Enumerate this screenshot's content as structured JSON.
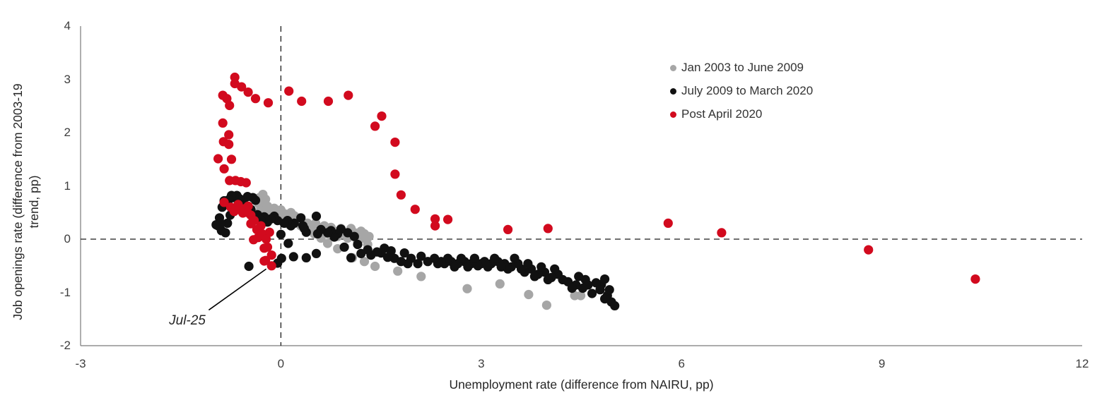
{
  "chart_data": {
    "type": "scatter",
    "title": "",
    "xlabel": "Unemployment rate (difference from NAIRU, pp)",
    "ylabel": "Job openings rate (difference from 2003-19 trend, pp)",
    "ylabel_lines": [
      "Job openings rate (difference from 2003-19",
      "trend, pp)"
    ],
    "xlim": [
      -3,
      12
    ],
    "ylim": [
      -2,
      4
    ],
    "x_ticks": [
      -3,
      0,
      3,
      6,
      9,
      12
    ],
    "y_ticks": [
      4,
      3,
      2,
      1,
      0,
      -1,
      -2
    ],
    "grid": false,
    "zero_reference_lines": "dashed",
    "legend_position": "upper-right-inside",
    "axis_color": "#7a7a7a",
    "dash_color": "#1a1a1a",
    "marker_radius_px": 6.6,
    "annotation": {
      "text": "Jul-25",
      "points_to": [
        -0.14,
        -0.5
      ],
      "line_from": [
        -1.08,
        -1.33
      ],
      "line_to": [
        -0.22,
        -0.56
      ]
    },
    "series": [
      {
        "name": "Jan 2003 to June 2009",
        "color": "#a6a6a6",
        "points": [
          [
            1.15,
            -0.05
          ],
          [
            1.22,
            0.02
          ],
          [
            1.3,
            -0.1
          ],
          [
            1.25,
            0.1
          ],
          [
            1.1,
            0.05
          ],
          [
            1.32,
            0.05
          ],
          [
            1.2,
            0.15
          ],
          [
            1.1,
            0.12
          ],
          [
            1.0,
            0.02
          ],
          [
            1.05,
            0.2
          ],
          [
            0.95,
            0.1
          ],
          [
            0.9,
            0.2
          ],
          [
            0.92,
            0.12
          ],
          [
            0.85,
            0.05
          ],
          [
            0.8,
            0.15
          ],
          [
            0.75,
            0.22
          ],
          [
            0.7,
            0.1
          ],
          [
            0.65,
            0.25
          ],
          [
            0.6,
            0.2
          ],
          [
            0.55,
            0.15
          ],
          [
            0.52,
            0.3
          ],
          [
            0.45,
            0.25
          ],
          [
            0.5,
            0.2
          ],
          [
            0.4,
            0.3
          ],
          [
            0.35,
            0.3
          ],
          [
            0.3,
            0.25
          ],
          [
            0.25,
            0.35
          ],
          [
            0.2,
            0.3
          ],
          [
            0.15,
            0.4
          ],
          [
            0.1,
            0.35
          ],
          [
            0.12,
            0.28
          ],
          [
            0.05,
            0.4
          ],
          [
            0.0,
            0.35
          ],
          [
            -0.05,
            0.45
          ],
          [
            -0.1,
            0.4
          ],
          [
            -0.15,
            0.45
          ],
          [
            -0.2,
            0.5
          ],
          [
            -0.25,
            0.45
          ],
          [
            -0.3,
            0.55
          ],
          [
            -0.34,
            0.5
          ],
          [
            -0.28,
            0.6
          ],
          [
            -0.33,
            0.66
          ],
          [
            -0.3,
            0.72
          ],
          [
            -0.26,
            0.68
          ],
          [
            -0.32,
            0.78
          ],
          [
            -0.27,
            0.84
          ],
          [
            -0.23,
            0.75
          ],
          [
            -0.3,
            0.62
          ],
          [
            -0.25,
            0.7
          ],
          [
            -0.2,
            0.62
          ],
          [
            -0.15,
            0.55
          ],
          [
            -0.1,
            0.58
          ],
          [
            -0.05,
            0.5
          ],
          [
            0.0,
            0.55
          ],
          [
            0.05,
            0.48
          ],
          [
            0.02,
            0.42
          ],
          [
            0.08,
            0.45
          ],
          [
            0.15,
            0.5
          ],
          [
            0.2,
            0.44
          ],
          [
            0.25,
            0.4
          ],
          [
            0.3,
            0.33
          ],
          [
            0.35,
            0.25
          ],
          [
            0.42,
            0.18
          ],
          [
            0.5,
            0.1
          ],
          [
            0.6,
            0.02
          ],
          [
            0.7,
            -0.08
          ],
          [
            0.85,
            -0.18
          ],
          [
            1.07,
            -0.35
          ],
          [
            1.25,
            -0.42
          ],
          [
            1.41,
            -0.51
          ],
          [
            1.75,
            -0.6
          ],
          [
            2.1,
            -0.7
          ],
          [
            2.79,
            -0.93
          ],
          [
            3.28,
            -0.84
          ],
          [
            3.71,
            -1.04
          ],
          [
            3.98,
            -1.24
          ],
          [
            4.4,
            -1.06
          ],
          [
            4.49,
            -1.06
          ]
        ]
      },
      {
        "name": "July 2009 to March 2020",
        "color": "#111111",
        "points": [
          [
            4.89,
            -1.06
          ],
          [
            4.95,
            -1.18
          ],
          [
            5.0,
            -1.25
          ],
          [
            4.92,
            -0.95
          ],
          [
            4.85,
            -1.12
          ],
          [
            4.8,
            -0.85
          ],
          [
            4.85,
            -0.75
          ],
          [
            4.72,
            -0.82
          ],
          [
            4.78,
            -0.95
          ],
          [
            4.6,
            -0.86
          ],
          [
            4.66,
            -1.02
          ],
          [
            4.52,
            -0.92
          ],
          [
            4.56,
            -0.76
          ],
          [
            4.42,
            -0.86
          ],
          [
            4.46,
            -0.7
          ],
          [
            4.3,
            -0.8
          ],
          [
            4.36,
            -0.92
          ],
          [
            4.22,
            -0.76
          ],
          [
            4.15,
            -0.66
          ],
          [
            4.05,
            -0.72
          ],
          [
            4.1,
            -0.56
          ],
          [
            3.95,
            -0.62
          ],
          [
            4.0,
            -0.76
          ],
          [
            3.85,
            -0.66
          ],
          [
            3.9,
            -0.52
          ],
          [
            3.75,
            -0.56
          ],
          [
            3.8,
            -0.7
          ],
          [
            3.65,
            -0.62
          ],
          [
            3.7,
            -0.46
          ],
          [
            3.6,
            -0.56
          ],
          [
            3.55,
            -0.46
          ],
          [
            3.45,
            -0.52
          ],
          [
            3.5,
            -0.36
          ],
          [
            3.35,
            -0.46
          ],
          [
            3.4,
            -0.56
          ],
          [
            3.25,
            -0.42
          ],
          [
            3.3,
            -0.52
          ],
          [
            3.15,
            -0.46
          ],
          [
            3.2,
            -0.36
          ],
          [
            3.05,
            -0.42
          ],
          [
            3.1,
            -0.52
          ],
          [
            3.0,
            -0.46
          ],
          [
            2.95,
            -0.5
          ],
          [
            2.85,
            -0.46
          ],
          [
            2.9,
            -0.36
          ],
          [
            2.75,
            -0.42
          ],
          [
            2.8,
            -0.52
          ],
          [
            2.65,
            -0.46
          ],
          [
            2.7,
            -0.36
          ],
          [
            2.55,
            -0.42
          ],
          [
            2.6,
            -0.52
          ],
          [
            2.45,
            -0.46
          ],
          [
            2.5,
            -0.36
          ],
          [
            2.4,
            -0.42
          ],
          [
            2.35,
            -0.46
          ],
          [
            2.3,
            -0.36
          ],
          [
            2.2,
            -0.42
          ],
          [
            2.1,
            -0.32
          ],
          [
            2.05,
            -0.46
          ],
          [
            1.95,
            -0.36
          ],
          [
            1.9,
            -0.46
          ],
          [
            1.85,
            -0.26
          ],
          [
            1.8,
            -0.42
          ],
          [
            1.7,
            -0.36
          ],
          [
            1.65,
            -0.22
          ],
          [
            1.6,
            -0.34
          ],
          [
            1.55,
            -0.17
          ],
          [
            1.5,
            -0.26
          ],
          [
            1.44,
            -0.24
          ],
          [
            1.35,
            -0.3
          ],
          [
            1.3,
            -0.2
          ],
          [
            1.2,
            -0.27
          ],
          [
            1.15,
            -0.1
          ],
          [
            1.1,
            0.05
          ],
          [
            1.05,
            -0.35
          ],
          [
            1.0,
            0.12
          ],
          [
            0.95,
            -0.15
          ],
          [
            0.9,
            0.19
          ],
          [
            0.85,
            0.1
          ],
          [
            0.8,
            0.04
          ],
          [
            0.75,
            0.16
          ],
          [
            0.7,
            0.12
          ],
          [
            0.53,
            -0.27
          ],
          [
            0.6,
            0.18
          ],
          [
            0.55,
            0.1
          ],
          [
            0.53,
            0.43
          ],
          [
            0.38,
            -0.35
          ],
          [
            0.01,
            -0.36
          ],
          [
            0.38,
            0.13
          ],
          [
            0.33,
            0.25
          ],
          [
            0.35,
            0.2
          ],
          [
            0.3,
            0.4
          ],
          [
            0.19,
            -0.33
          ],
          [
            0.2,
            0.3
          ],
          [
            0.15,
            0.25
          ],
          [
            0.1,
            0.35
          ],
          [
            0.05,
            0.3
          ],
          [
            0.0,
            0.09
          ],
          [
            0.11,
            -0.08
          ],
          [
            -0.05,
            0.35
          ],
          [
            -0.1,
            0.43
          ],
          [
            -0.15,
            0.38
          ],
          [
            -0.2,
            0.32
          ],
          [
            -0.25,
            0.42
          ],
          [
            -0.3,
            0.36
          ],
          [
            -0.35,
            0.46
          ],
          [
            -0.38,
            0.73
          ],
          [
            -0.45,
            0.56
          ],
          [
            -0.42,
            0.78
          ],
          [
            -0.55,
            0.66
          ],
          [
            -0.5,
            0.8
          ],
          [
            -0.62,
            0.76
          ],
          [
            -0.66,
            0.82
          ],
          [
            -0.7,
            0.78
          ],
          [
            -0.74,
            0.82
          ],
          [
            -0.78,
            0.74
          ],
          [
            -0.82,
            0.66
          ],
          [
            -0.85,
            0.72
          ],
          [
            -0.88,
            0.6
          ],
          [
            -0.92,
            0.4
          ],
          [
            -0.94,
            0.25
          ],
          [
            -0.97,
            0.27
          ],
          [
            -0.89,
            0.16
          ],
          [
            -0.83,
            0.12
          ],
          [
            -0.8,
            0.3
          ],
          [
            -0.76,
            0.45
          ],
          [
            -0.9,
            0.3
          ],
          [
            -0.48,
            -0.51
          ],
          [
            -0.05,
            -0.45
          ]
        ]
      },
      {
        "name": "Post April 2020",
        "color": "#d20a1e",
        "points": [
          [
            10.4,
            -0.75
          ],
          [
            8.8,
            -0.2
          ],
          [
            6.6,
            0.12
          ],
          [
            5.8,
            0.3
          ],
          [
            4.0,
            0.2
          ],
          [
            3.4,
            0.18
          ],
          [
            2.5,
            0.37
          ],
          [
            2.31,
            0.38
          ],
          [
            2.31,
            0.25
          ],
          [
            2.01,
            0.56
          ],
          [
            1.8,
            0.83
          ],
          [
            1.71,
            1.22
          ],
          [
            1.71,
            1.82
          ],
          [
            1.41,
            2.12
          ],
          [
            1.51,
            2.31
          ],
          [
            1.01,
            2.7
          ],
          [
            0.71,
            2.59
          ],
          [
            0.31,
            2.59
          ],
          [
            0.12,
            2.78
          ],
          [
            -0.19,
            2.56
          ],
          [
            -0.38,
            2.64
          ],
          [
            -0.49,
            2.76
          ],
          [
            -0.59,
            2.86
          ],
          [
            -0.69,
            2.92
          ],
          [
            -0.69,
            3.04
          ],
          [
            -0.87,
            2.7
          ],
          [
            -0.81,
            2.64
          ],
          [
            -0.77,
            2.51
          ],
          [
            -0.87,
            2.18
          ],
          [
            -0.78,
            1.96
          ],
          [
            -0.86,
            1.83
          ],
          [
            -0.78,
            1.78
          ],
          [
            -0.94,
            1.51
          ],
          [
            -0.74,
            1.5
          ],
          [
            -0.85,
            1.32
          ],
          [
            -0.77,
            1.1
          ],
          [
            -0.68,
            1.1
          ],
          [
            -0.6,
            1.08
          ],
          [
            -0.52,
            1.06
          ],
          [
            -0.85,
            0.69
          ],
          [
            -0.75,
            0.6
          ],
          [
            -0.64,
            0.65
          ],
          [
            -0.7,
            0.52
          ],
          [
            -0.62,
            0.56
          ],
          [
            -0.57,
            0.49
          ],
          [
            -0.49,
            0.62
          ],
          [
            -0.55,
            0.57
          ],
          [
            -0.5,
            0.5
          ],
          [
            -0.45,
            0.45
          ],
          [
            -0.45,
            0.29
          ],
          [
            -0.4,
            0.35
          ],
          [
            -0.36,
            0.18
          ],
          [
            -0.3,
            0.25
          ],
          [
            -0.17,
            0.13
          ],
          [
            -0.41,
            -0.01
          ],
          [
            -0.34,
            0.03
          ],
          [
            -0.28,
            0.1
          ],
          [
            -0.22,
            0.0
          ],
          [
            -0.25,
            -0.17
          ],
          [
            -0.2,
            -0.15
          ],
          [
            -0.23,
            -0.4
          ],
          [
            -0.25,
            -0.41
          ],
          [
            -0.14,
            -0.3
          ],
          [
            -0.14,
            -0.5
          ]
        ]
      }
    ]
  }
}
